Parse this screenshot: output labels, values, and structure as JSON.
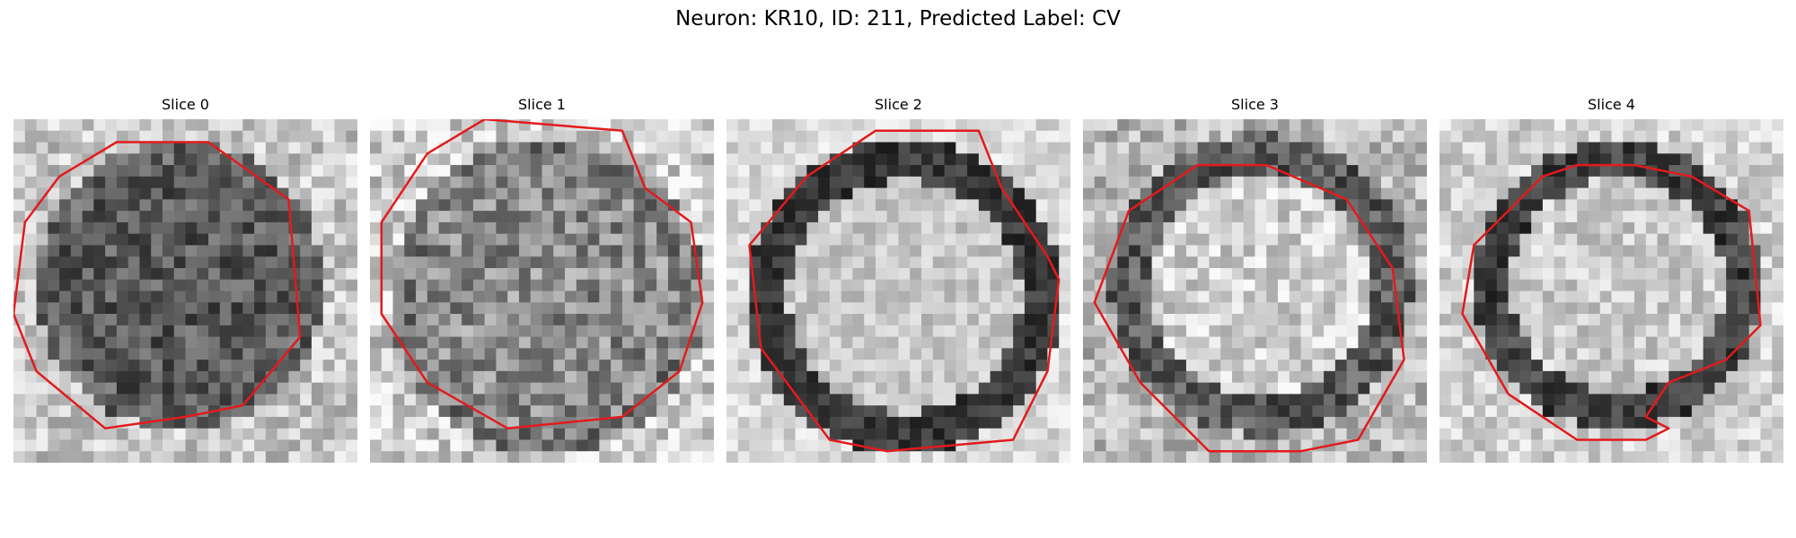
{
  "figure": {
    "title": "Neuron: KR10, ID: 211, Predicted Label: CV"
  },
  "panels": [
    {
      "title": "Slice 0"
    },
    {
      "title": "Slice 1"
    },
    {
      "title": "Slice 2"
    },
    {
      "title": "Slice 3"
    },
    {
      "title": "Slice 4"
    }
  ],
  "colors": {
    "contour": "#e31a1c",
    "background": "#ffffff"
  }
}
